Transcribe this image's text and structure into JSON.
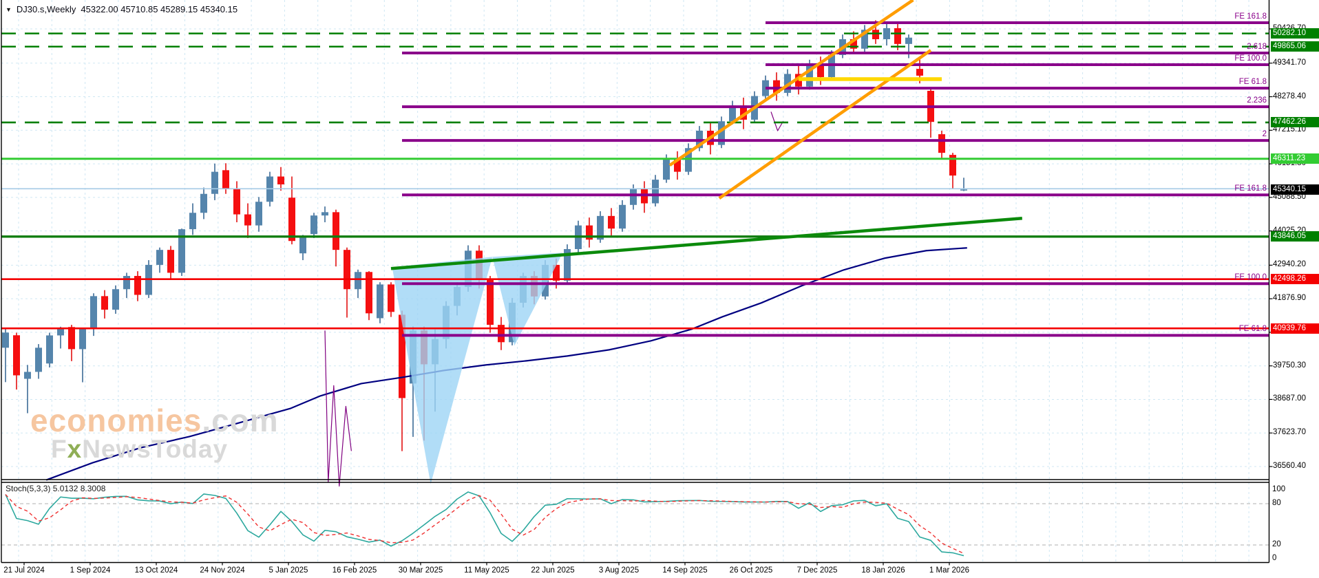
{
  "header": {
    "symbol": "DJ30.s,Weekly",
    "ohlc": "45322.00 45710.85 45289.15 45340.15"
  },
  "watermark": {
    "brand": "economies",
    "domain": ".com",
    "tag_f": "F",
    "tag_x": "x",
    "tag_rest": "NewsToday"
  },
  "indicator": {
    "label": "Stoch(5,3,3) 5.0132 8.3008",
    "name": "Stoch",
    "params": "5,3,3",
    "k_value": "5.0132",
    "d_value": "8.3008"
  },
  "price_axis": {
    "labels": [
      "50426.70",
      "49341.70",
      "48278.40",
      "47215.10",
      "46151.80",
      "45088.50",
      "44025.20",
      "42940.20",
      "41876.90",
      "40813.60",
      "39750.30",
      "38687.00",
      "37623.70",
      "36560.40"
    ],
    "badges": [
      {
        "value": "50282.10",
        "price": 50282.1,
        "bg": "#008000"
      },
      {
        "value": "49865.06",
        "price": 49865.06,
        "bg": "#008000"
      },
      {
        "value": "47462.26",
        "price": 47462.26,
        "bg": "#008000"
      },
      {
        "value": "46311.23",
        "price": 46311.23,
        "bg": "#33cc33"
      },
      {
        "value": "45340.15",
        "price": 45340.15,
        "bg": "#000000"
      },
      {
        "value": "43846.05",
        "price": 43846.05,
        "bg": "#008000"
      },
      {
        "value": "42498.26",
        "price": 42498.26,
        "bg": "#f40000"
      },
      {
        "value": "40939.76",
        "price": 40939.76,
        "bg": "#f40000"
      }
    ]
  },
  "stoch_axis": [
    {
      "label": "100",
      "value": 100
    },
    {
      "label": "80",
      "value": 80
    },
    {
      "label": "20",
      "value": 20
    },
    {
      "label": "0",
      "value": 0
    }
  ],
  "dates": [
    "21 Jul 2024",
    "1 Sep 2024",
    "13 Oct 2024",
    "24 Nov 2024",
    "5 Jan 2025",
    "16 Feb 2025",
    "30 Mar 2025",
    "11 May 2025",
    "22 Jun 2025",
    "3 Aug 2025",
    "14 Sep 2025",
    "26 Oct 2025",
    "7 Dec 2025",
    "18 Jan 2026",
    "1 Mar 2026"
  ],
  "colors": {
    "bull": "#5585ac",
    "bullWick": "#2f618f",
    "bear": "#f50f10",
    "bearWick": "#e00000",
    "grid": "#cfe7f3",
    "bid": "#a5cae6",
    "ma": "#000080",
    "purple": "#8a008a",
    "orange": "#ff9d00",
    "yellow": "#ffd800",
    "greenDark": "#007f00",
    "greenBright": "#33cc33",
    "red": "#f40000",
    "trend": "#0b8a0b",
    "pattern": "#9ed4f5",
    "zigzag": "#800080",
    "stochK": "#2ca89e",
    "stochD": "#f03030"
  },
  "chart_data": {
    "type": "candlestick",
    "symbol": "DJ30.s",
    "timeframe": "Weekly",
    "current_ohlc": {
      "open": 45322.0,
      "high": 45710.85,
      "low": 45289.15,
      "close": 45340.15
    },
    "y_ticks": [
      50426.7,
      49341.7,
      48278.4,
      47215.1,
      46151.8,
      45088.5,
      44025.2,
      42940.2,
      41876.9,
      40813.6,
      39750.3,
      38687.0,
      37623.7,
      36560.4
    ],
    "x_tick_labels": [
      "21 Jul 2024",
      "1 Sep 2024",
      "13 Oct 2024",
      "24 Nov 2024",
      "5 Jan 2025",
      "16 Feb 2025",
      "30 Mar 2025",
      "11 May 2025",
      "22 Jun 2025",
      "3 Aug 2025",
      "14 Sep 2025",
      "26 Oct 2025",
      "7 Dec 2025",
      "18 Jan 2026",
      "1 Mar 2026"
    ],
    "candles": [
      [
        40325,
        40915,
        39235,
        40805
      ],
      [
        40720,
        40800,
        39000,
        39450
      ],
      [
        39340,
        39780,
        38250,
        39560
      ],
      [
        39560,
        40440,
        39340,
        40325
      ],
      [
        39825,
        40800,
        39700,
        40715
      ],
      [
        40715,
        40990,
        40300,
        40960
      ],
      [
        40980,
        41050,
        39900,
        40280
      ],
      [
        40280,
        40915,
        39230,
        40910
      ],
      [
        40910,
        42050,
        40700,
        41960
      ],
      [
        41960,
        42150,
        41250,
        41530
      ],
      [
        41530,
        42300,
        41400,
        42180
      ],
      [
        42180,
        42700,
        41900,
        42600
      ],
      [
        42600,
        42750,
        41800,
        42000
      ],
      [
        42000,
        43100,
        41900,
        42950
      ],
      [
        42950,
        43500,
        42700,
        43425
      ],
      [
        43425,
        43550,
        42500,
        42700
      ],
      [
        42700,
        44100,
        42600,
        44080
      ],
      [
        44080,
        44900,
        43900,
        44600
      ],
      [
        44600,
        45400,
        44400,
        45200
      ],
      [
        45200,
        46160,
        45000,
        45900
      ],
      [
        45950,
        46170,
        45200,
        45350
      ],
      [
        45350,
        45600,
        44300,
        44550
      ],
      [
        44550,
        44900,
        43800,
        44200
      ],
      [
        44200,
        45100,
        44000,
        44950
      ],
      [
        44950,
        45900,
        44800,
        45750
      ],
      [
        45750,
        46050,
        45300,
        45500
      ],
      [
        45080,
        45750,
        43600,
        43707
      ],
      [
        43315,
        43900,
        43100,
        43815
      ],
      [
        43925,
        44600,
        43800,
        44515
      ],
      [
        44515,
        44800,
        44300,
        44620
      ],
      [
        44620,
        44700,
        42900,
        43425
      ],
      [
        43425,
        43500,
        41280,
        42180
      ],
      [
        42180,
        42800,
        41900,
        42725
      ],
      [
        42725,
        42750,
        41200,
        41415
      ],
      [
        41260,
        42400,
        41100,
        42330
      ],
      [
        42330,
        42400,
        41300,
        41460
      ],
      [
        41370,
        41500,
        37050,
        38730
      ],
      [
        39190,
        41000,
        37500,
        40870
      ],
      [
        40870,
        41000,
        37380,
        39800
      ],
      [
        39800,
        40900,
        38300,
        40600
      ],
      [
        40600,
        41800,
        40300,
        41650
      ],
      [
        41650,
        42400,
        41350,
        42250
      ],
      [
        42250,
        43570,
        42100,
        43400
      ],
      [
        43400,
        43570,
        42200,
        42500
      ],
      [
        42500,
        42600,
        40800,
        41050
      ],
      [
        41050,
        41300,
        40250,
        40500
      ],
      [
        40500,
        41900,
        40400,
        41750
      ],
      [
        41750,
        42700,
        41600,
        42600
      ],
      [
        42600,
        42750,
        41700,
        41950
      ],
      [
        41950,
        43100,
        41850,
        42950
      ],
      [
        42950,
        43150,
        42200,
        42450
      ],
      [
        42450,
        43600,
        42350,
        43450
      ],
      [
        43450,
        44350,
        43300,
        44200
      ],
      [
        44200,
        44450,
        43500,
        43750
      ],
      [
        43750,
        44650,
        43650,
        44500
      ],
      [
        44500,
        44750,
        43850,
        44100
      ],
      [
        44100,
        45000,
        44000,
        44850
      ],
      [
        44850,
        45500,
        44700,
        45350
      ],
      [
        45350,
        45600,
        44600,
        44900
      ],
      [
        44900,
        45800,
        44800,
        45650
      ],
      [
        45650,
        46450,
        45550,
        46300
      ],
      [
        46300,
        46550,
        45650,
        45900
      ],
      [
        45900,
        46800,
        45800,
        46650
      ],
      [
        46650,
        47350,
        46550,
        47200
      ],
      [
        47200,
        47450,
        46450,
        46750
      ],
      [
        46750,
        47650,
        46650,
        47500
      ],
      [
        47500,
        48150,
        47400,
        48000
      ],
      [
        48000,
        48250,
        47250,
        47550
      ],
      [
        47550,
        48450,
        47450,
        48300
      ],
      [
        48300,
        48950,
        48200,
        48800
      ],
      [
        48800,
        49050,
        48150,
        48400
      ],
      [
        48400,
        49150,
        48300,
        49000
      ],
      [
        49000,
        49250,
        48350,
        48600
      ],
      [
        48600,
        49450,
        48500,
        49300
      ],
      [
        49300,
        49550,
        48650,
        48900
      ],
      [
        48900,
        49750,
        48800,
        49600
      ],
      [
        49600,
        50250,
        49500,
        50100
      ],
      [
        50100,
        50350,
        49650,
        49800
      ],
      [
        49800,
        50550,
        49700,
        50400
      ],
      [
        50400,
        50700,
        49950,
        50100
      ],
      [
        50100,
        50600,
        49900,
        50450
      ],
      [
        50450,
        50650,
        49750,
        49950
      ],
      [
        49950,
        50250,
        49500,
        50150
      ],
      [
        49160,
        49500,
        48700,
        48945
      ],
      [
        48465,
        48550,
        46980,
        47480
      ],
      [
        47090,
        47200,
        46330,
        46500
      ],
      [
        46435,
        46500,
        45380,
        45780
      ],
      [
        45322,
        45711,
        45289,
        45340
      ]
    ],
    "horizontal_levels": {
      "green_dashed": [
        50282.1,
        49865.06,
        47462.26
      ],
      "green_solid_bright": 46311.23,
      "green_solid_dark": 43846.05,
      "red_solid": [
        42498.26,
        40939.76
      ],
      "bid_line": 45340.15
    },
    "fib_levels": [
      {
        "label": "FE 161.8",
        "price": 50623,
        "from_index": 69
      },
      {
        "label": "2.618",
        "price": 49663,
        "from_index": 36
      },
      {
        "label": "FE 100.0",
        "price": 49292,
        "from_index": 69
      },
      {
        "label": "FE 61.8",
        "price": 48550,
        "from_index": 69
      },
      {
        "label": "2.236",
        "price": 47961,
        "from_index": 36
      },
      {
        "label": "2",
        "price": 46892,
        "from_index": 36
      },
      {
        "label": "FE 161.8",
        "price": 45168,
        "from_index": 36
      },
      {
        "label": "FE 100.0",
        "price": 42354,
        "from_index": 36
      },
      {
        "label": "FE 61.8",
        "price": 40717,
        "from_index": 36
      }
    ],
    "trendline_green": [
      [
        35,
        42834
      ],
      [
        92.3,
        44426
      ]
    ],
    "channel_orange": {
      "upper": [
        [
          60.3,
          46106
        ],
        [
          82.4,
          51343
        ]
      ],
      "lower": [
        [
          64.8,
          45059
        ],
        [
          84.0,
          49750
        ]
      ]
    },
    "yellow_line": [
      [
        72,
        48834
      ],
      [
        85,
        48834
      ]
    ],
    "moving_average": [
      [
        3.7,
        36135
      ],
      [
        7.9,
        36680
      ],
      [
        12.3,
        37160
      ],
      [
        16.7,
        37510
      ],
      [
        21,
        37925
      ],
      [
        25.9,
        38405
      ],
      [
        28.6,
        38800
      ],
      [
        32.3,
        39190
      ],
      [
        36,
        39386
      ],
      [
        39.8,
        39605
      ],
      [
        43.6,
        39779
      ],
      [
        47.3,
        39910
      ],
      [
        51,
        40063
      ],
      [
        54.8,
        40259
      ],
      [
        58.6,
        40543
      ],
      [
        62.3,
        40914
      ],
      [
        65.1,
        41307
      ],
      [
        68.6,
        41743
      ],
      [
        72.3,
        42289
      ],
      [
        76.1,
        42790
      ],
      [
        79.8,
        43161
      ],
      [
        83.6,
        43401
      ],
      [
        87.3,
        43489
      ]
    ],
    "pattern_triangles": [
      [
        [
          35.1,
          42877
        ],
        [
          44.2,
          43205
        ],
        [
          38.6,
          36004
        ]
      ],
      [
        [
          44.2,
          43205
        ],
        [
          50.6,
          43336
        ],
        [
          46.2,
          40390
        ]
      ]
    ],
    "zigzag_drawings": [
      [
        [
          29.0,
          40871
        ],
        [
          29.3,
          36069
        ],
        [
          29.8,
          39125
        ],
        [
          30.3,
          35938
        ],
        [
          30.9,
          38470
        ],
        [
          31.4,
          37052
        ]
      ],
      [
        [
          69.5,
          47800
        ],
        [
          70.1,
          47200
        ],
        [
          70.6,
          47500
        ]
      ]
    ],
    "stochastic": {
      "name": "Stoch",
      "k_period": 5,
      "d_period": 3,
      "slowing": 3,
      "last_k": 5.0132,
      "last_d": 8.3008,
      "levels": [
        20,
        80
      ]
    }
  }
}
